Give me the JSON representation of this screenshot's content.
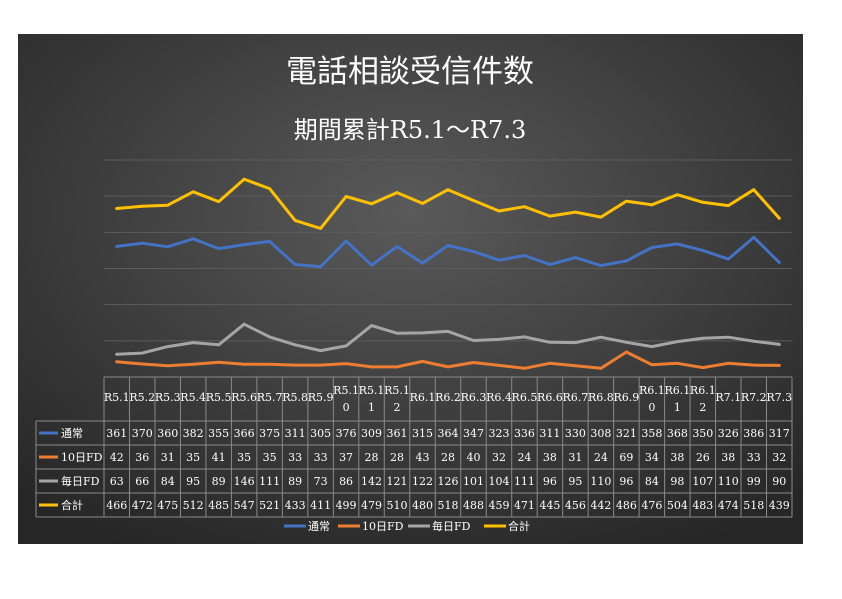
{
  "chart_data": {
    "type": "line",
    "title": "電話相談受信件数",
    "subtitle": "期間累計R5.1～R7.3",
    "categories": [
      "R5.1",
      "R5.2",
      "R5.3",
      "R5.4",
      "R5.5",
      "R5.6",
      "R5.7",
      "R5.8",
      "R5.9",
      "R5.10",
      "R5.11",
      "R5.12",
      "R6.1",
      "R6.2",
      "R6.3",
      "R6.4",
      "R6.5",
      "R6.6",
      "R6.7",
      "R6.8",
      "R6.9",
      "R6.10",
      "R6.11",
      "R6.12",
      "R7.1",
      "R7.2",
      "R7.3"
    ],
    "series": [
      {
        "name": "通常",
        "color": "#4472C4",
        "values": [
          361,
          370,
          360,
          382,
          355,
          366,
          375,
          311,
          305,
          376,
          309,
          361,
          315,
          364,
          347,
          323,
          336,
          311,
          330,
          308,
          321,
          358,
          368,
          350,
          326,
          386,
          317
        ]
      },
      {
        "name": "10日FD",
        "color": "#ED7D31",
        "values": [
          42,
          36,
          31,
          35,
          41,
          35,
          35,
          33,
          33,
          37,
          28,
          28,
          43,
          28,
          40,
          32,
          24,
          38,
          31,
          24,
          69,
          34,
          38,
          26,
          38,
          33,
          32
        ]
      },
      {
        "name": "毎日FD",
        "color": "#A5A5A5",
        "values": [
          63,
          66,
          84,
          95,
          89,
          146,
          111,
          89,
          73,
          86,
          142,
          121,
          122,
          126,
          101,
          104,
          111,
          96,
          95,
          110,
          96,
          84,
          98,
          107,
          110,
          99,
          90
        ]
      },
      {
        "name": "合計",
        "color": "#FFC000",
        "values": [
          466,
          472,
          475,
          512,
          485,
          547,
          521,
          433,
          411,
          499,
          479,
          510,
          480,
          518,
          488,
          459,
          471,
          445,
          456,
          442,
          486,
          476,
          504,
          483,
          474,
          518,
          439
        ]
      }
    ],
    "ylim": [
      0,
      600
    ],
    "grid": true,
    "legend_position": "bottom",
    "data_table": true
  }
}
